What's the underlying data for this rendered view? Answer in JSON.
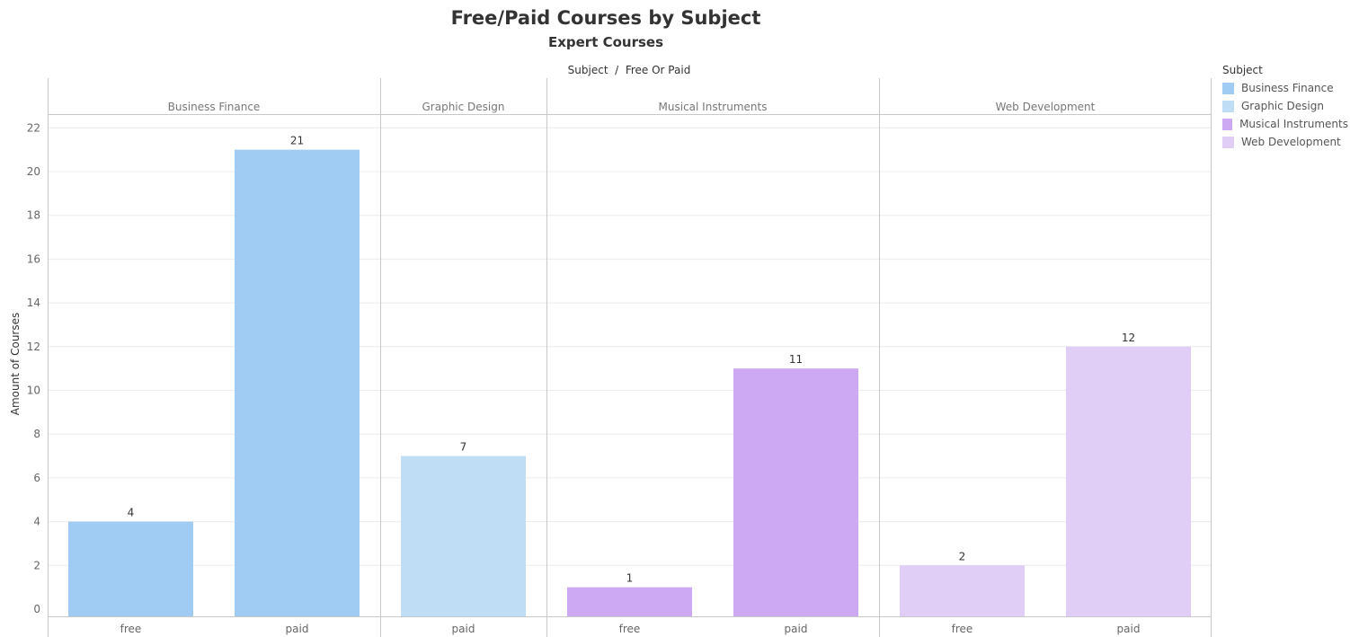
{
  "chart_data": {
    "type": "bar",
    "title": "Free/Paid Courses by Subject",
    "subtitle": "Expert Courses",
    "column_header": "Subject  /  Free Or Paid",
    "ylabel": "Amount of Courses",
    "ylim": [
      0,
      23
    ],
    "yticks": [
      0,
      2,
      4,
      6,
      8,
      10,
      12,
      14,
      16,
      18,
      20,
      22
    ],
    "grid": true,
    "legend_title": "Subject",
    "legend_position": "top-right",
    "panels": [
      {
        "subject": "Business Finance",
        "color": "#a0cbf3",
        "bars": [
          {
            "category": "free",
            "value": 4
          },
          {
            "category": "paid",
            "value": 21
          }
        ]
      },
      {
        "subject": "Graphic Design",
        "color": "#c0ddf6",
        "bars": [
          {
            "category": "paid",
            "value": 7
          }
        ]
      },
      {
        "subject": "Musical Instruments",
        "color": "#cea9f3",
        "bars": [
          {
            "category": "free",
            "value": 1
          },
          {
            "category": "paid",
            "value": 11
          }
        ]
      },
      {
        "subject": "Web Development",
        "color": "#e0cef6",
        "bars": [
          {
            "category": "free",
            "value": 2
          },
          {
            "category": "paid",
            "value": 12
          }
        ]
      }
    ],
    "legend": [
      {
        "label": "Business Finance",
        "color": "#a0cbf3"
      },
      {
        "label": "Graphic Design",
        "color": "#c0ddf6"
      },
      {
        "label": "Musical Instruments",
        "color": "#cea9f3"
      },
      {
        "label": "Web Development",
        "color": "#e0cef6"
      }
    ]
  }
}
